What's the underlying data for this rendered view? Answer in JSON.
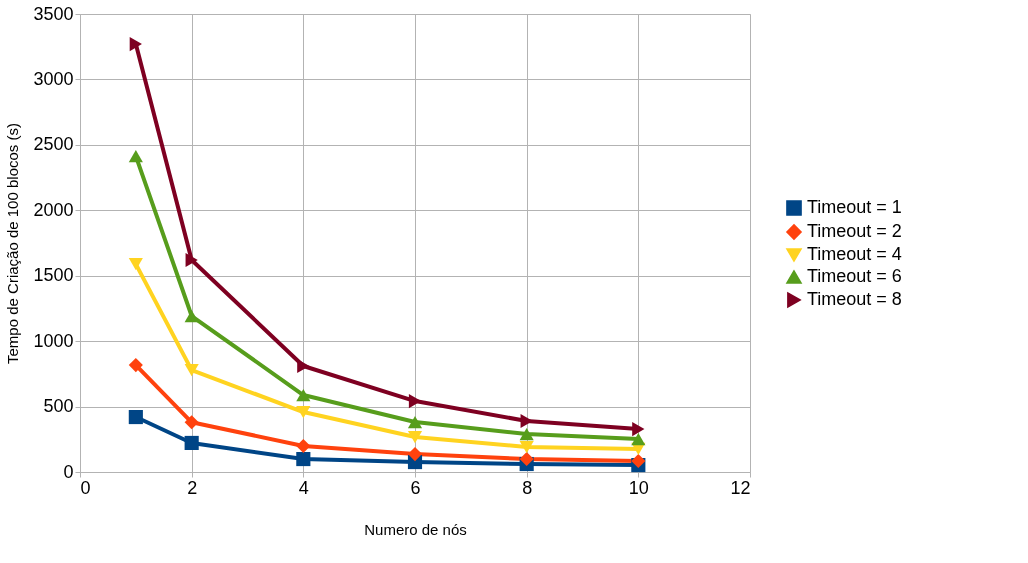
{
  "chart_data": {
    "type": "line",
    "xlabel": "Numero de nós",
    "ylabel": "Tempo de Criação de 100 blocos (s)",
    "x": [
      1,
      2,
      4,
      6,
      8,
      10
    ],
    "xlim": [
      0,
      12
    ],
    "xticks": [
      0,
      2,
      4,
      6,
      8,
      10,
      12
    ],
    "ylim": [
      0,
      3500
    ],
    "yticks": [
      0,
      500,
      1000,
      1500,
      2000,
      2500,
      3000,
      3500
    ],
    "grid": true,
    "legend": "right",
    "series": [
      {
        "name": "Timeout = 1",
        "color": "#004586",
        "marker": "square",
        "values": [
          420,
          222,
          99,
          76,
          61,
          53
        ]
      },
      {
        "name": "Timeout = 2",
        "color": "#ff420e",
        "marker": "diamond",
        "values": [
          817,
          380,
          199,
          137,
          99,
          84
        ]
      },
      {
        "name": "Timeout = 4",
        "color": "#ffd320",
        "marker": "triangle-down",
        "values": [
          1589,
          779,
          458,
          267,
          191,
          176
        ]
      },
      {
        "name": "Timeout = 6",
        "color": "#579d1c",
        "marker": "triangle-up",
        "values": [
          2414,
          1192,
          588,
          382,
          290,
          252
        ]
      },
      {
        "name": "Timeout = 8",
        "color": "#7e0021",
        "marker": "triangle-right",
        "values": [
          3270,
          1620,
          810,
          542,
          390,
          328
        ]
      }
    ]
  }
}
